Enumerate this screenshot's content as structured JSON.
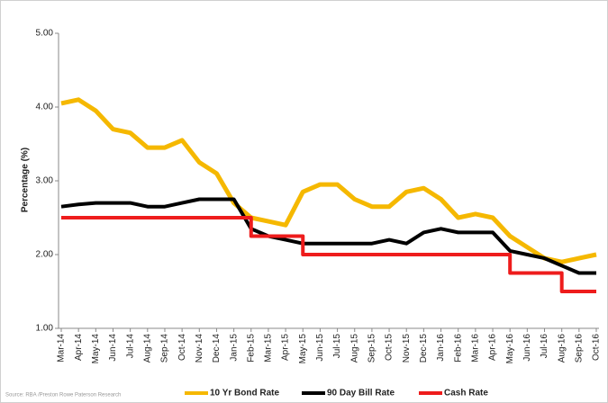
{
  "chart_data": {
    "type": "line",
    "y_label": "Percentage (%)",
    "source": "Source: RBA /Preston Rowe Paterson Research",
    "categories": [
      "Mar-14",
      "Apr-14",
      "May-14",
      "Jun-14",
      "Jul-14",
      "Aug-14",
      "Sep-14",
      "Oct-14",
      "Nov-14",
      "Dec-14",
      "Jan-15",
      "Feb-15",
      "Mar-15",
      "Apr-15",
      "May-15",
      "Jun-15",
      "Jul-15",
      "Aug-15",
      "Sep-15",
      "Oct-15",
      "Nov-15",
      "Dec-15",
      "Jan-16",
      "Feb-16",
      "Mar-16",
      "Apr-16",
      "May-16",
      "Jun-16",
      "Jul-16",
      "Aug-16",
      "Sep-16",
      "Oct-16"
    ],
    "series": [
      {
        "name": "10 Yr Bond Rate",
        "color": "#f5b800",
        "width": 5,
        "step": false,
        "values": [
          4.05,
          4.1,
          3.95,
          3.7,
          3.65,
          3.45,
          3.45,
          3.55,
          3.25,
          3.1,
          2.7,
          2.5,
          2.45,
          2.4,
          2.85,
          2.95,
          2.95,
          2.75,
          2.65,
          2.65,
          2.85,
          2.9,
          2.75,
          2.5,
          2.55,
          2.5,
          2.25,
          2.1,
          1.95,
          1.9,
          1.95,
          2.0
        ]
      },
      {
        "name": "90 Day Bill Rate",
        "color": "#000000",
        "width": 4,
        "step": false,
        "values": [
          2.65,
          2.68,
          2.7,
          2.7,
          2.7,
          2.65,
          2.65,
          2.7,
          2.75,
          2.75,
          2.75,
          2.35,
          2.25,
          2.2,
          2.15,
          2.15,
          2.15,
          2.15,
          2.15,
          2.2,
          2.15,
          2.3,
          2.35,
          2.3,
          2.3,
          2.3,
          2.05,
          2.0,
          1.95,
          1.85,
          1.75,
          1.75
        ]
      },
      {
        "name": "Cash Rate",
        "color": "#ee1c1c",
        "width": 4,
        "step": true,
        "values": [
          2.5,
          2.5,
          2.5,
          2.5,
          2.5,
          2.5,
          2.5,
          2.5,
          2.5,
          2.5,
          2.5,
          2.25,
          2.25,
          2.25,
          2.0,
          2.0,
          2.0,
          2.0,
          2.0,
          2.0,
          2.0,
          2.0,
          2.0,
          2.0,
          2.0,
          2.0,
          1.75,
          1.75,
          1.75,
          1.5,
          1.5,
          1.5
        ]
      }
    ],
    "ylim": [
      1,
      5
    ],
    "yticks": [
      {
        "value": 1,
        "label": "1.00"
      },
      {
        "value": 2,
        "label": "2.00"
      },
      {
        "value": 3,
        "label": "3.00"
      },
      {
        "value": 4,
        "label": "4.00"
      },
      {
        "value": 5,
        "label": "5.00"
      }
    ],
    "legend": "bottom"
  }
}
